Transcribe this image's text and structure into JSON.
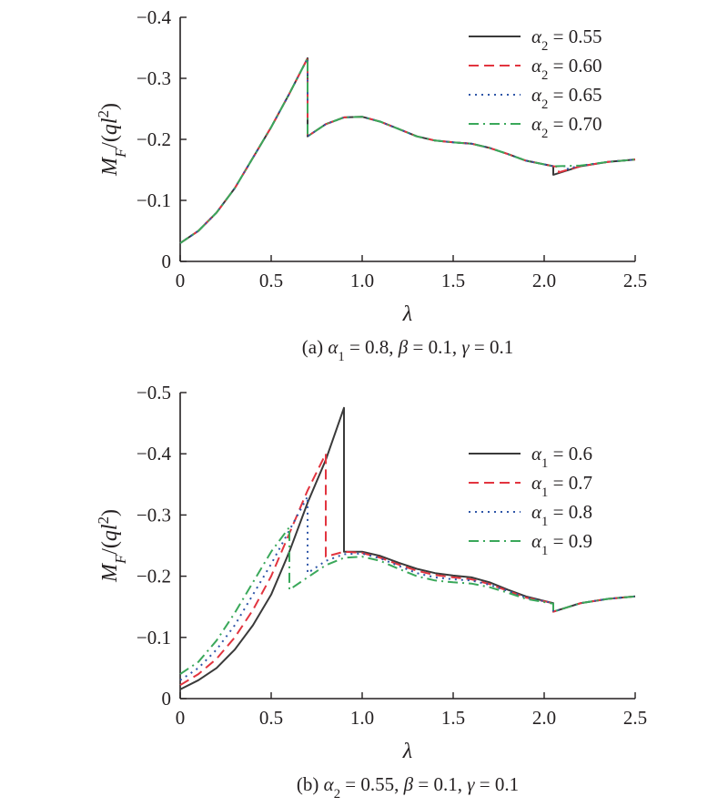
{
  "chart_data": [
    {
      "type": "line",
      "panel": "a",
      "caption": {
        "label": "(a)",
        "text": "α₁ = 0.8, β = 0.1, γ = 0.1"
      },
      "xlabel": "λ",
      "ylabel": "M_F/(ql²)",
      "xlim": [
        0,
        2.5
      ],
      "ylim": [
        0,
        -0.4
      ],
      "xticks": [
        0,
        0.5,
        1.0,
        1.5,
        2.0,
        2.5
      ],
      "xtick_labels": [
        "0",
        "0.5",
        "1.0",
        "1.5",
        "2.0",
        "2.5"
      ],
      "yticks": [
        0,
        -0.1,
        -0.2,
        -0.3,
        -0.4
      ],
      "ytick_labels": [
        "0",
        "−0.1",
        "−0.2",
        "−0.3",
        "−0.4"
      ],
      "grid": false,
      "legend": "top-right",
      "series": [
        {
          "name": "α₂ = 0.55",
          "color": "#3a3a3a",
          "dash": "solid",
          "x": [
            0,
            0.1,
            0.2,
            0.3,
            0.4,
            0.5,
            0.6,
            0.7,
            0.7,
            0.8,
            0.9,
            1.0,
            1.1,
            1.2,
            1.3,
            1.4,
            1.5,
            1.6,
            1.7,
            1.8,
            1.9,
            2.05,
            2.05,
            2.2,
            2.35,
            2.5
          ],
          "y": [
            -0.03,
            -0.05,
            -0.08,
            -0.12,
            -0.17,
            -0.22,
            -0.275,
            -0.333,
            -0.205,
            -0.225,
            -0.236,
            -0.237,
            -0.229,
            -0.217,
            -0.205,
            -0.198,
            -0.195,
            -0.193,
            -0.186,
            -0.176,
            -0.165,
            -0.156,
            -0.142,
            -0.156,
            -0.163,
            -0.167
          ]
        },
        {
          "name": "α₂ = 0.60",
          "color": "#e2343f",
          "dash": "dashed",
          "x": [
            0,
            0.1,
            0.2,
            0.3,
            0.4,
            0.5,
            0.6,
            0.7,
            0.7,
            0.8,
            0.9,
            1.0,
            1.1,
            1.2,
            1.3,
            1.4,
            1.5,
            1.6,
            1.7,
            1.8,
            1.9,
            2.05,
            2.08,
            2.08,
            2.2,
            2.35,
            2.5
          ],
          "y": [
            -0.03,
            -0.05,
            -0.08,
            -0.12,
            -0.17,
            -0.22,
            -0.275,
            -0.333,
            -0.205,
            -0.225,
            -0.236,
            -0.237,
            -0.229,
            -0.217,
            -0.205,
            -0.198,
            -0.195,
            -0.193,
            -0.186,
            -0.176,
            -0.165,
            -0.156,
            -0.155,
            -0.146,
            -0.156,
            -0.163,
            -0.167
          ]
        },
        {
          "name": "α₂ = 0.65",
          "color": "#2f56a8",
          "dash": "dotted",
          "x": [
            0,
            0.1,
            0.2,
            0.3,
            0.4,
            0.5,
            0.6,
            0.7,
            0.7,
            0.8,
            0.9,
            1.0,
            1.1,
            1.2,
            1.3,
            1.4,
            1.5,
            1.6,
            1.7,
            1.8,
            1.9,
            2.05,
            2.12,
            2.12,
            2.2,
            2.35,
            2.5
          ],
          "y": [
            -0.03,
            -0.05,
            -0.08,
            -0.12,
            -0.17,
            -0.22,
            -0.275,
            -0.333,
            -0.205,
            -0.225,
            -0.236,
            -0.237,
            -0.229,
            -0.217,
            -0.205,
            -0.198,
            -0.195,
            -0.193,
            -0.186,
            -0.176,
            -0.165,
            -0.156,
            -0.156,
            -0.151,
            -0.157,
            -0.163,
            -0.167
          ]
        },
        {
          "name": "α₂ = 0.70",
          "color": "#3aa85a",
          "dash": "dashdot",
          "x": [
            0,
            0.1,
            0.2,
            0.3,
            0.4,
            0.5,
            0.6,
            0.7,
            0.7,
            0.8,
            0.9,
            1.0,
            1.1,
            1.2,
            1.3,
            1.4,
            1.5,
            1.6,
            1.7,
            1.8,
            1.9,
            2.05,
            2.2,
            2.35,
            2.5
          ],
          "y": [
            -0.03,
            -0.05,
            -0.08,
            -0.12,
            -0.17,
            -0.22,
            -0.275,
            -0.333,
            -0.205,
            -0.225,
            -0.236,
            -0.237,
            -0.229,
            -0.217,
            -0.205,
            -0.198,
            -0.195,
            -0.193,
            -0.186,
            -0.176,
            -0.165,
            -0.156,
            -0.157,
            -0.163,
            -0.167
          ]
        }
      ]
    },
    {
      "type": "line",
      "panel": "b",
      "caption": {
        "label": "(b)",
        "text": "α₂ = 0.55, β = 0.1, γ = 0.1"
      },
      "xlabel": "λ",
      "ylabel": "M_F/(ql²)",
      "xlim": [
        0,
        2.5
      ],
      "ylim": [
        0,
        -0.5
      ],
      "xticks": [
        0,
        0.5,
        1.0,
        1.5,
        2.0,
        2.5
      ],
      "xtick_labels": [
        "0",
        "0.5",
        "1.0",
        "1.5",
        "2.0",
        "2.5"
      ],
      "yticks": [
        0,
        -0.1,
        -0.2,
        -0.3,
        -0.4,
        -0.5
      ],
      "ytick_labels": [
        "0",
        "−0.1",
        "−0.2",
        "−0.3",
        "−0.4",
        "−0.5"
      ],
      "grid": false,
      "legend": "right",
      "series": [
        {
          "name": "α₁ = 0.6",
          "color": "#3a3a3a",
          "dash": "solid",
          "x": [
            0,
            0.1,
            0.2,
            0.3,
            0.4,
            0.5,
            0.6,
            0.7,
            0.8,
            0.9,
            0.9,
            1.0,
            1.1,
            1.2,
            1.3,
            1.4,
            1.5,
            1.6,
            1.7,
            1.8,
            1.9,
            2.05,
            2.05,
            2.2,
            2.35,
            2.5
          ],
          "y": [
            -0.015,
            -0.03,
            -0.05,
            -0.08,
            -0.12,
            -0.17,
            -0.24,
            -0.32,
            -0.39,
            -0.475,
            -0.24,
            -0.24,
            -0.233,
            -0.222,
            -0.212,
            -0.205,
            -0.201,
            -0.198,
            -0.19,
            -0.178,
            -0.167,
            -0.156,
            -0.142,
            -0.156,
            -0.163,
            -0.167
          ]
        },
        {
          "name": "α₁ = 0.7",
          "color": "#e2343f",
          "dash": "dashed",
          "x": [
            0,
            0.1,
            0.2,
            0.3,
            0.4,
            0.5,
            0.6,
            0.7,
            0.8,
            0.8,
            0.9,
            1.0,
            1.1,
            1.2,
            1.3,
            1.4,
            1.5,
            1.6,
            1.7,
            1.8,
            1.9,
            2.05,
            2.05,
            2.2,
            2.35,
            2.5
          ],
          "y": [
            -0.022,
            -0.04,
            -0.065,
            -0.1,
            -0.145,
            -0.2,
            -0.27,
            -0.34,
            -0.4,
            -0.232,
            -0.24,
            -0.238,
            -0.23,
            -0.219,
            -0.209,
            -0.202,
            -0.198,
            -0.195,
            -0.187,
            -0.176,
            -0.165,
            -0.156,
            -0.142,
            -0.156,
            -0.163,
            -0.167
          ]
        },
        {
          "name": "α₁ = 0.8",
          "color": "#2f56a8",
          "dash": "dotted",
          "x": [
            0,
            0.1,
            0.2,
            0.3,
            0.4,
            0.5,
            0.6,
            0.7,
            0.7,
            0.8,
            0.9,
            1.0,
            1.1,
            1.2,
            1.3,
            1.4,
            1.5,
            1.6,
            1.7,
            1.8,
            1.9,
            2.05,
            2.05,
            2.2,
            2.35,
            2.5
          ],
          "y": [
            -0.03,
            -0.05,
            -0.08,
            -0.12,
            -0.17,
            -0.22,
            -0.275,
            -0.33,
            -0.205,
            -0.225,
            -0.236,
            -0.237,
            -0.229,
            -0.217,
            -0.205,
            -0.198,
            -0.195,
            -0.193,
            -0.186,
            -0.176,
            -0.165,
            -0.156,
            -0.142,
            -0.156,
            -0.163,
            -0.167
          ]
        },
        {
          "name": "α₁ = 0.9",
          "color": "#3aa85a",
          "dash": "dashdot",
          "x": [
            0,
            0.1,
            0.2,
            0.3,
            0.4,
            0.5,
            0.6,
            0.6,
            0.7,
            0.8,
            0.9,
            1.0,
            1.1,
            1.2,
            1.3,
            1.4,
            1.5,
            1.6,
            1.7,
            1.8,
            1.9,
            2.05,
            2.05,
            2.2,
            2.35,
            2.5
          ],
          "y": [
            -0.04,
            -0.06,
            -0.095,
            -0.14,
            -0.19,
            -0.24,
            -0.28,
            -0.178,
            -0.198,
            -0.218,
            -0.23,
            -0.232,
            -0.225,
            -0.212,
            -0.2,
            -0.193,
            -0.19,
            -0.188,
            -0.182,
            -0.173,
            -0.163,
            -0.155,
            -0.142,
            -0.156,
            -0.163,
            -0.167
          ]
        }
      ]
    }
  ]
}
